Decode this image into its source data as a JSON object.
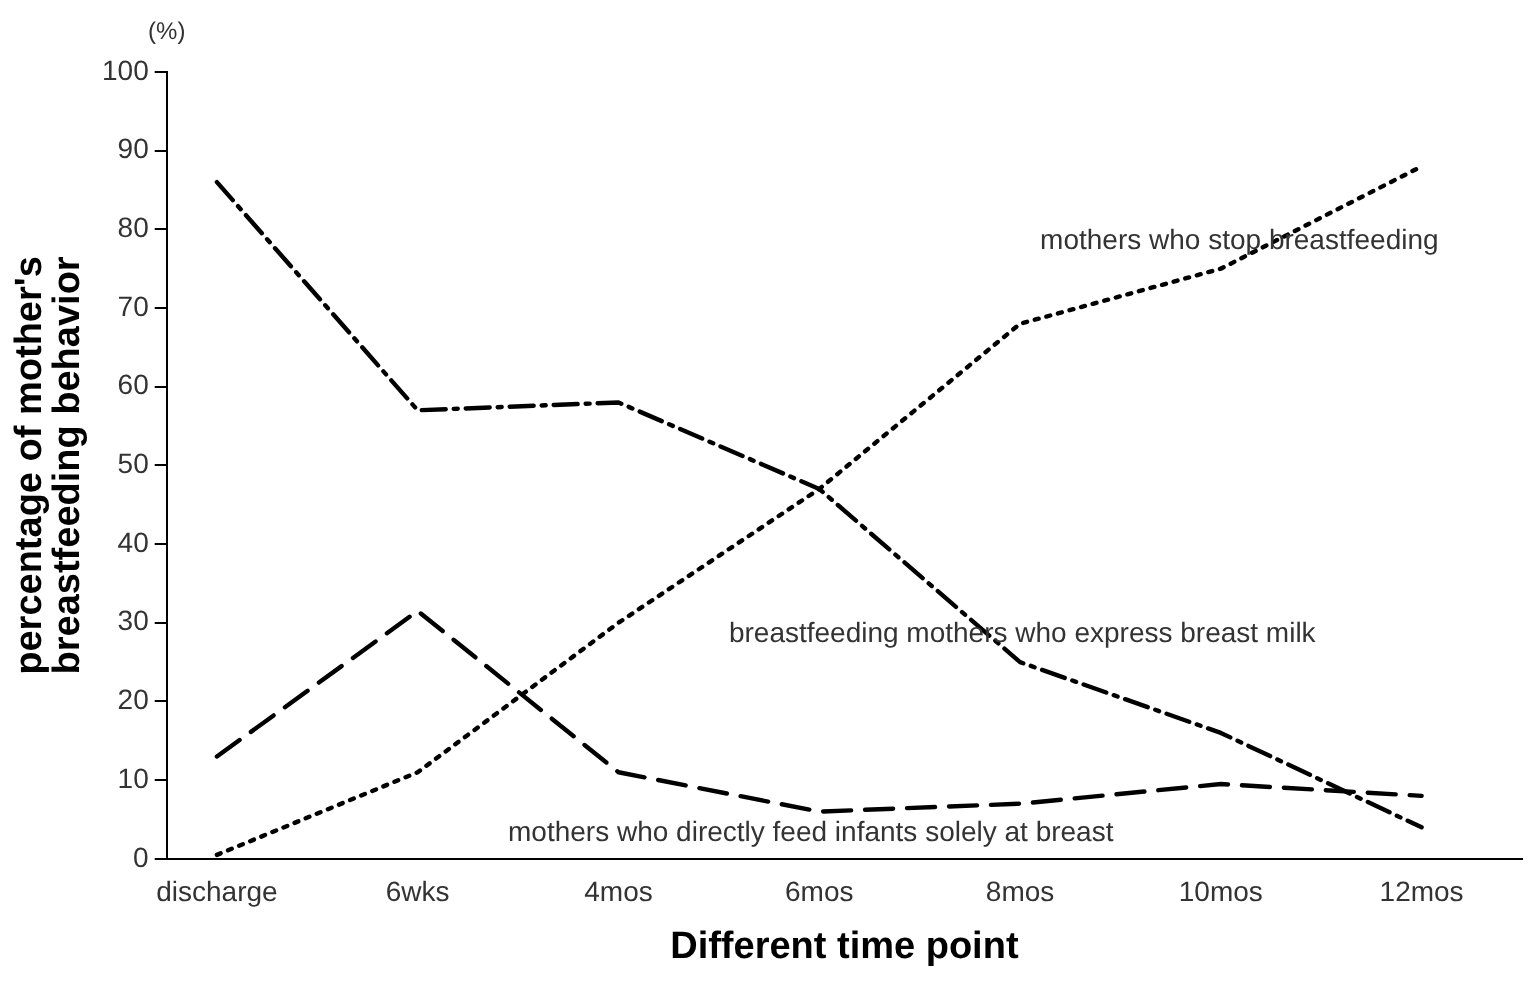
{
  "chart_data": {
    "type": "line",
    "xlabel": "Different time point",
    "ylabel": "percentage of mother's\nbreastfeeding behavior",
    "categories": [
      "discharge",
      "6wks",
      "4mos",
      "6mos",
      "8mos",
      "10mos",
      "12mos"
    ],
    "series": [
      {
        "name": "breastfeeding mothers who express breast milk",
        "color": "#000000",
        "line_style": "dashdot",
        "values": [
          86,
          57,
          58,
          47,
          25,
          16,
          4
        ]
      },
      {
        "name": "mothers who stop breastfeeding",
        "color": "#000000",
        "line_style": "dotted",
        "values": [
          0.5,
          11,
          30,
          47,
          68,
          75,
          88
        ]
      },
      {
        "name": "mothers who directly feed infants solely at breast",
        "color": "#000000",
        "line_style": "dashed",
        "values": [
          13,
          31.5,
          11,
          6,
          7,
          9.5,
          8
        ]
      }
    ],
    "ylim": [
      0,
      100
    ],
    "yticks": [
      0,
      10,
      20,
      30,
      40,
      50,
      60,
      70,
      80,
      90,
      100
    ],
    "annotations": [
      "(%)"
    ],
    "grid": false,
    "legend": false,
    "marker": "none"
  }
}
